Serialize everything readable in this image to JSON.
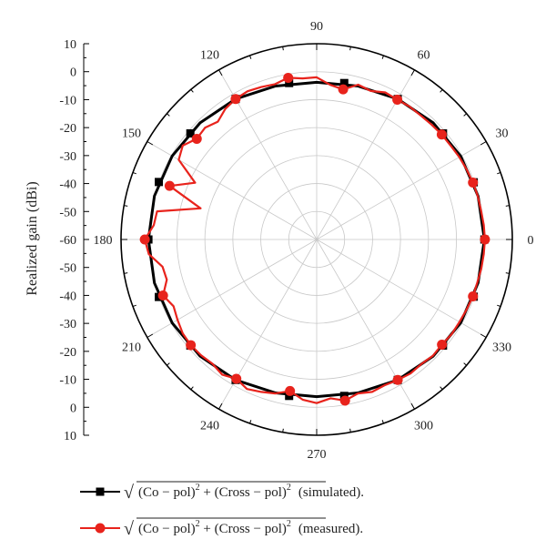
{
  "chart_data": {
    "type": "polar-line",
    "ylabel": "Realized gain (dBi)",
    "radial_range": [
      -60,
      10
    ],
    "radial_scale_ticks": [
      "10",
      "0",
      "-10",
      "-20",
      "-30",
      "-40",
      "-50",
      "-60",
      "-50",
      "-40",
      "-30",
      "-20",
      "-10",
      "0",
      "10"
    ],
    "angle_ticks": [
      {
        "angle": 0,
        "label": "0"
      },
      {
        "angle": 30,
        "label": "30"
      },
      {
        "angle": 60,
        "label": "60"
      },
      {
        "angle": 90,
        "label": "90"
      },
      {
        "angle": 120,
        "label": "120"
      },
      {
        "angle": 150,
        "label": "150"
      },
      {
        "angle": 180,
        "label": "180"
      },
      {
        "angle": 210,
        "label": "210"
      },
      {
        "angle": 240,
        "label": "240"
      },
      {
        "angle": 270,
        "label": "270"
      },
      {
        "angle": 300,
        "label": "300"
      },
      {
        "angle": 330,
        "label": "330"
      }
    ],
    "grid": true,
    "legend_position": "bottom",
    "series": [
      {
        "name": "√(Co − pol)² + (Cross − pol)² (simulated).",
        "legend_tail": "(simulated).",
        "color": "#000000",
        "marker": "square",
        "points": [
          [
            0,
            0.0
          ],
          [
            15,
            -0.2
          ],
          [
            30,
            -0.5
          ],
          [
            45,
            -1.0
          ],
          [
            60,
            -2.0
          ],
          [
            75,
            -3.2
          ],
          [
            90,
            -3.8
          ],
          [
            105,
            -3.2
          ],
          [
            120,
            -2.0
          ],
          [
            135,
            -1.0
          ],
          [
            150,
            -0.3
          ],
          [
            165,
            0.1
          ],
          [
            180,
            0.2
          ],
          [
            195,
            0.1
          ],
          [
            210,
            -0.3
          ],
          [
            225,
            -1.0
          ],
          [
            240,
            -2.0
          ],
          [
            255,
            -3.2
          ],
          [
            270,
            -3.8
          ],
          [
            285,
            -3.2
          ],
          [
            300,
            -2.0
          ],
          [
            315,
            -1.0
          ],
          [
            330,
            -0.5
          ],
          [
            345,
            -0.2
          ],
          [
            360,
            0.0
          ]
        ],
        "marker_angles": [
          0,
          20,
          40,
          60,
          80,
          100,
          120,
          140,
          160,
          180,
          200,
          220,
          240,
          260,
          280,
          300,
          320,
          340
        ]
      },
      {
        "name": "√(Co − pol)² + (Cross − pol)² (measured).",
        "legend_tail": "(measured).",
        "color": "#e8231c",
        "marker": "circle",
        "points": [
          [
            0,
            0.2
          ],
          [
            5,
            0.0
          ],
          [
            10,
            -0.3
          ],
          [
            15,
            -0.3
          ],
          [
            20,
            -0.5
          ],
          [
            25,
            -0.8
          ],
          [
            30,
            -1.1
          ],
          [
            35,
            -1.5
          ],
          [
            40,
            -1.6
          ],
          [
            45,
            -1.9
          ],
          [
            50,
            -2.1
          ],
          [
            55,
            -2.0
          ],
          [
            60,
            -2.3
          ],
          [
            65,
            -2.0
          ],
          [
            70,
            -3.5
          ],
          [
            75,
            -2.7
          ],
          [
            80,
            -5.5
          ],
          [
            85,
            -4.5
          ],
          [
            90,
            -2.0
          ],
          [
            95,
            -2.2
          ],
          [
            100,
            -1.3
          ],
          [
            105,
            -2.5
          ],
          [
            110,
            -2.0
          ],
          [
            115,
            -1.5
          ],
          [
            120,
            -2.0
          ],
          [
            125,
            -3.0
          ],
          [
            130,
            -5.0
          ],
          [
            135,
            -3.5
          ],
          [
            140,
            -4.0
          ],
          [
            145,
            -1.5
          ],
          [
            150,
            -3.0
          ],
          [
            155,
            -12.0
          ],
          [
            160,
            -4.0
          ],
          [
            165,
            -17.0
          ],
          [
            170,
            -2.0
          ],
          [
            175,
            -1.5
          ],
          [
            180,
            1.5
          ],
          [
            185,
            0.3
          ],
          [
            190,
            -4.0
          ],
          [
            195,
            -4.5
          ],
          [
            200,
            -1.5
          ],
          [
            205,
            -3.5
          ],
          [
            210,
            -2.5
          ],
          [
            215,
            -1.5
          ],
          [
            220,
            -1.2
          ],
          [
            225,
            -1.5
          ],
          [
            230,
            -2.0
          ],
          [
            235,
            -1.0
          ],
          [
            240,
            -2.5
          ],
          [
            245,
            -1.0
          ],
          [
            250,
            -2.0
          ],
          [
            255,
            -3.0
          ],
          [
            260,
            -5.0
          ],
          [
            265,
            -2.5
          ],
          [
            270,
            -1.5
          ],
          [
            275,
            -3.0
          ],
          [
            280,
            -1.5
          ],
          [
            285,
            -3.0
          ],
          [
            290,
            -2.0
          ],
          [
            295,
            -2.5
          ],
          [
            300,
            -2.0
          ],
          [
            305,
            -1.5
          ],
          [
            310,
            -1.8
          ],
          [
            315,
            -1.2
          ],
          [
            320,
            -1.5
          ],
          [
            325,
            -1.0
          ],
          [
            330,
            -1.0
          ],
          [
            335,
            -0.8
          ],
          [
            340,
            -0.5
          ],
          [
            345,
            -0.5
          ],
          [
            350,
            -0.2
          ],
          [
            355,
            0.0
          ],
          [
            360,
            0.2
          ]
        ],
        "marker_points": [
          [
            0,
            0.2
          ],
          [
            20,
            -0.5
          ],
          [
            40,
            -1.6
          ],
          [
            60,
            -2.3
          ],
          [
            80,
            -5.5
          ],
          [
            100,
            -1.3
          ],
          [
            120,
            -2.0
          ],
          [
            140,
            -4.0
          ],
          [
            160,
            -4.0
          ],
          [
            180,
            1.5
          ],
          [
            200,
            -1.5
          ],
          [
            220,
            -1.2
          ],
          [
            240,
            -2.5
          ],
          [
            260,
            -5.0
          ],
          [
            280,
            -1.5
          ],
          [
            300,
            -2.0
          ],
          [
            320,
            -1.5
          ],
          [
            340,
            -0.5
          ]
        ]
      }
    ]
  },
  "legend": {
    "sqrt_open": "√",
    "co_pol": "(Co − pol)",
    "plus": " + ",
    "cross_pol": "(Cross − pol)",
    "sup2": "2"
  }
}
